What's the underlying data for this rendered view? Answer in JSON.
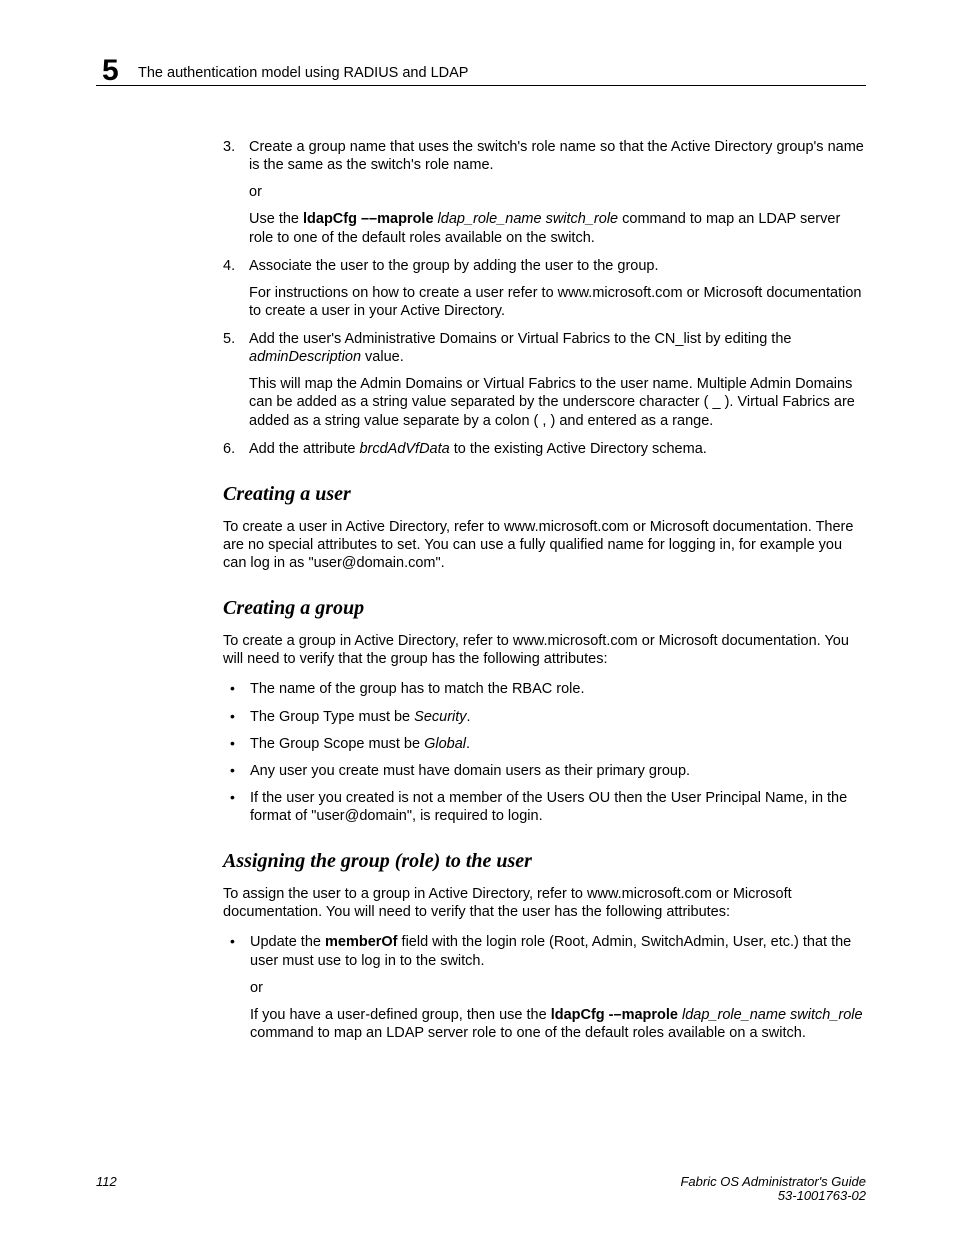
{
  "header": {
    "chapter_number": "5",
    "running_title": "The authentication model using RADIUS and LDAP"
  },
  "steps": {
    "s3": {
      "num": "3.",
      "text_a": "Create a group name that uses the switch's role name so that the Active Directory group's name is the same as the switch's role name.",
      "or": "or",
      "text_b_pre": "Use the ",
      "text_b_cmd": "ldapCfg ––maprole",
      "text_b_args": " ldap_role_name switch_role",
      "text_b_post": " command to map an LDAP server role to one of the default roles available on the switch."
    },
    "s4": {
      "num": "4.",
      "text_a": "Associate the user to the group by adding the user to the group.",
      "text_b": "For instructions on how to create a user refer to www.microsoft.com or Microsoft documentation to create a user in your Active Directory."
    },
    "s5": {
      "num": "5.",
      "text_a_pre": "Add the user's Administrative Domains or Virtual Fabrics to the CN_list by editing the ",
      "text_a_ital": "adminDescription",
      "text_a_post": " value.",
      "text_b": "This will map the Admin Domains or Virtual Fabrics to the user name. Multiple Admin Domains can be added as a string value separated by the underscore character ( _ ). Virtual Fabrics are added as a string value separate by a colon ( , ) and entered as a range."
    },
    "s6": {
      "num": "6.",
      "text_pre": "Add the attribute ",
      "text_ital": "brcdAdVfData",
      "text_post": " to the existing Active Directory schema."
    }
  },
  "sections": {
    "creating_user": {
      "title": "Creating a user",
      "p1": "To create a user in Active Directory, refer to www.microsoft.com or Microsoft documentation. There are no special attributes to set. You can use a fully qualified name for logging in, for example you can log in as \"user@domain.com\"."
    },
    "creating_group": {
      "title": "Creating a group",
      "p1": "To create a group in Active Directory, refer to www.microsoft.com or Microsoft documentation. You will need to verify that the group has the following attributes:",
      "b1": "The name of the group has to match the RBAC role.",
      "b2_pre": "The Group Type must be ",
      "b2_ital": "Security",
      "b2_post": ".",
      "b3_pre": "The Group Scope must be ",
      "b3_ital": "Global",
      "b3_post": ".",
      "b4": "Any user you create must have domain users as their primary group.",
      "b5": "If the user you created is not a member of the Users OU then the User Principal Name, in the format of \"user@domain\", is required to login."
    },
    "assigning": {
      "title": "Assigning the group (role) to the user",
      "p1": "To assign the user to a group in Active Directory, refer to www.microsoft.com or Microsoft documentation. You will need to verify that the user has the following attributes:",
      "b1_pre": "Update the ",
      "b1_bold": "memberOf",
      "b1_post": " field with the login role (Root, Admin, SwitchAdmin, User, etc.) that the user must use to log in to the switch.",
      "or": "or",
      "b1b_pre": "If you have a user-defined group, then use the ",
      "b1b_cmd": "ldapCfg -–maprole",
      "b1b_args": " ldap_role_name switch_role",
      "b1b_post": " command to map an LDAP server role to one of the default roles available on a switch."
    }
  },
  "footer": {
    "page_number": "112",
    "doc_title": "Fabric OS Administrator's Guide",
    "doc_number": "53-1001763-02"
  }
}
